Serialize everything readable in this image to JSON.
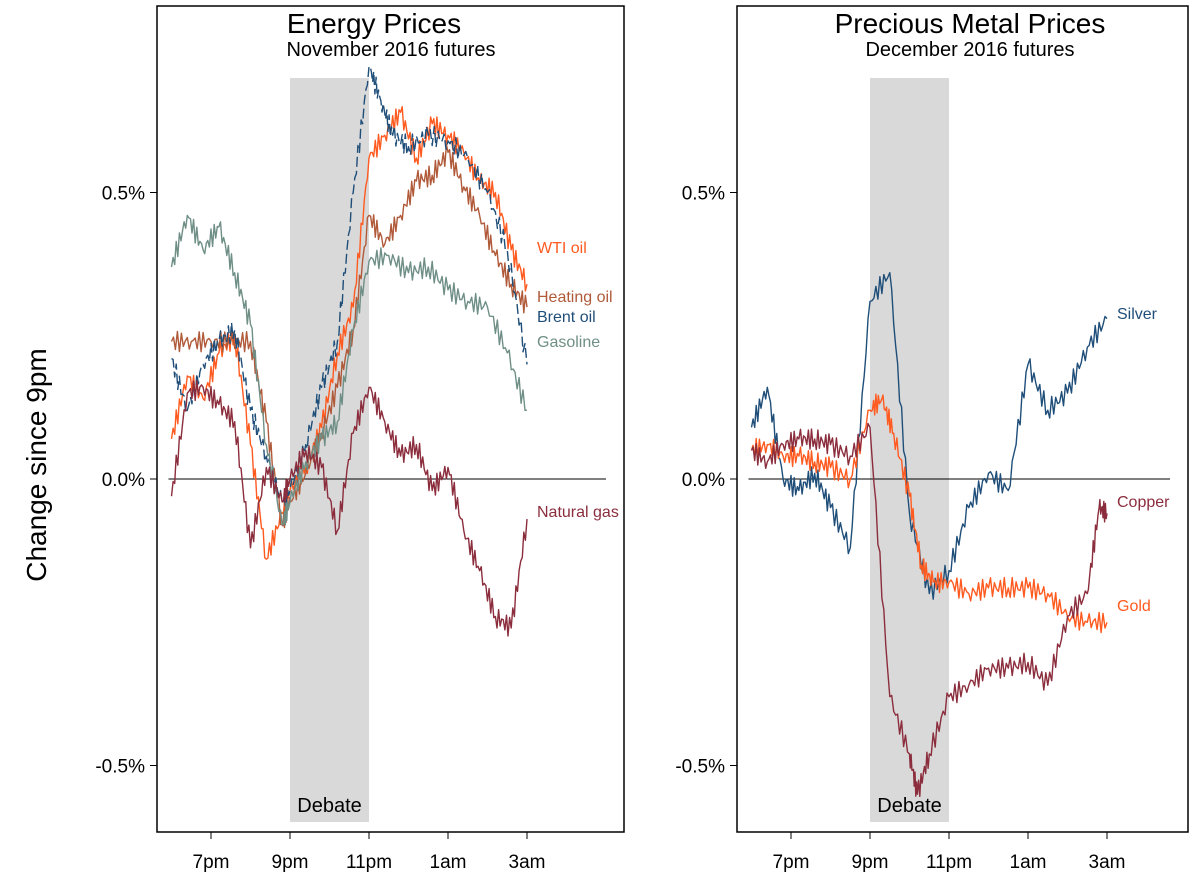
{
  "figure": {
    "ylabel": "Change since 9pm"
  },
  "chart_data": [
    {
      "type": "line",
      "title": "Energy Prices",
      "subtitle": "November 2016 futures",
      "ylabel": "Change since 9pm",
      "xlabel": "",
      "x_unit": "hours since 6pm",
      "xlim": [
        -0.5,
        11.5
      ],
      "ylim": [
        -0.6,
        0.83
      ],
      "x_ticks": [
        {
          "x": 1,
          "label": "7pm"
        },
        {
          "x": 3,
          "label": "9pm"
        },
        {
          "x": 5,
          "label": "11pm"
        },
        {
          "x": 7,
          "label": "1am"
        },
        {
          "x": 9,
          "label": "3am"
        }
      ],
      "y_ticks": [
        {
          "y": 0.5,
          "label": "0.5%"
        },
        {
          "y": 0.0,
          "label": "0.0%"
        },
        {
          "y": -0.5,
          "label": "-0.5%"
        }
      ],
      "zero_line": true,
      "grid": false,
      "shaded_region": {
        "x": [
          3,
          5
        ],
        "label": "Debate"
      },
      "series": [
        {
          "name": "WTI oil",
          "color": "#ff5a1f",
          "x": [
            0,
            0.4,
            0.8,
            1.2,
            1.6,
            2.0,
            2.4,
            2.8,
            3.0,
            3.4,
            3.8,
            4.2,
            4.6,
            5.0,
            5.4,
            5.8,
            6.2,
            6.6,
            7.0,
            7.4,
            7.8,
            8.2,
            8.6,
            9.0
          ],
          "y": [
            0.07,
            0.18,
            0.14,
            0.22,
            0.25,
            0.06,
            -0.14,
            -0.06,
            -0.02,
            0.02,
            0.09,
            0.22,
            0.3,
            0.56,
            0.6,
            0.64,
            0.56,
            0.62,
            0.6,
            0.57,
            0.52,
            0.5,
            0.4,
            0.34
          ]
        },
        {
          "name": "Heating oil",
          "color": "#b05a3a",
          "x": [
            0,
            0.5,
            1.0,
            1.5,
            2.0,
            2.4,
            2.8,
            3.0,
            3.4,
            3.8,
            4.2,
            4.6,
            5.0,
            5.4,
            5.8,
            6.2,
            6.6,
            7.0,
            7.4,
            7.8,
            8.2,
            8.6,
            9.0
          ],
          "y": [
            0.24,
            0.24,
            0.24,
            0.24,
            0.24,
            0.1,
            -0.08,
            -0.04,
            0.01,
            0.08,
            0.16,
            0.26,
            0.46,
            0.41,
            0.46,
            0.52,
            0.53,
            0.57,
            0.51,
            0.46,
            0.39,
            0.34,
            0.3
          ]
        },
        {
          "name": "Brent oil",
          "color": "#1f4e79",
          "x": [
            0,
            0.4,
            0.8,
            1.2,
            1.6,
            2.0,
            2.4,
            2.8,
            3.0,
            3.4,
            3.8,
            4.2,
            4.6,
            5.0,
            5.3,
            5.6,
            6.0,
            6.5,
            7.0,
            7.5,
            8.0,
            8.5,
            9.0
          ],
          "y": [
            0.21,
            0.12,
            0.2,
            0.24,
            0.26,
            0.12,
            0.04,
            -0.04,
            -0.02,
            0.06,
            0.16,
            0.24,
            0.5,
            0.72,
            0.66,
            0.6,
            0.58,
            0.6,
            0.59,
            0.56,
            0.5,
            0.4,
            0.2
          ]
        },
        {
          "name": "Gasoline",
          "color": "#6f8f86",
          "x": [
            0,
            0.4,
            0.8,
            1.2,
            1.6,
            2.0,
            2.4,
            2.8,
            3.0,
            3.4,
            3.8,
            4.2,
            4.6,
            5.0,
            5.5,
            6.0,
            6.5,
            7.0,
            7.5,
            8.0,
            8.5,
            9.0
          ],
          "y": [
            0.37,
            0.46,
            0.4,
            0.44,
            0.36,
            0.27,
            0.06,
            -0.08,
            -0.04,
            0.03,
            0.07,
            0.1,
            0.26,
            0.38,
            0.39,
            0.36,
            0.37,
            0.33,
            0.31,
            0.3,
            0.22,
            0.12
          ]
        },
        {
          "name": "Natural gas",
          "color": "#8b2d3c",
          "x": [
            0,
            0.4,
            0.8,
            1.2,
            1.6,
            2.0,
            2.4,
            2.8,
            3.0,
            3.4,
            3.8,
            4.2,
            4.6,
            5.0,
            5.4,
            5.8,
            6.2,
            6.6,
            7.0,
            7.4,
            7.8,
            8.2,
            8.6,
            9.0
          ],
          "y": [
            -0.03,
            0.15,
            0.16,
            0.13,
            0.1,
            -0.12,
            0.02,
            -0.04,
            0.0,
            0.05,
            0.02,
            -0.09,
            0.08,
            0.16,
            0.1,
            0.04,
            0.06,
            -0.02,
            0.02,
            -0.09,
            -0.16,
            -0.24,
            -0.26,
            -0.07
          ]
        }
      ]
    },
    {
      "type": "line",
      "title": "Precious Metal Prices",
      "subtitle": "December 2016 futures",
      "xlabel": "",
      "x_unit": "hours since 6pm",
      "xlim": [
        -0.5,
        11.5
      ],
      "ylim": [
        -0.6,
        0.83
      ],
      "x_ticks": [
        {
          "x": 1,
          "label": "7pm"
        },
        {
          "x": 3,
          "label": "9pm"
        },
        {
          "x": 5,
          "label": "11pm"
        },
        {
          "x": 7,
          "label": "1am"
        },
        {
          "x": 9,
          "label": "3am"
        }
      ],
      "y_ticks": [
        {
          "y": 0.5,
          "label": "0.5%"
        },
        {
          "y": 0.0,
          "label": "0.0%"
        },
        {
          "y": -0.5,
          "label": "-0.5%"
        }
      ],
      "zero_line": true,
      "grid": false,
      "shaded_region": {
        "x": [
          3,
          5
        ],
        "label": "Debate"
      },
      "series": [
        {
          "name": "Silver",
          "color": "#1f4e79",
          "x": [
            0,
            0.4,
            0.8,
            1.2,
            1.6,
            2.0,
            2.5,
            3.0,
            3.5,
            4.0,
            4.5,
            5.0,
            5.5,
            6.0,
            6.5,
            7.0,
            7.5,
            8.0,
            8.5,
            9.0
          ],
          "y": [
            0.09,
            0.16,
            0.0,
            -0.02,
            0.01,
            -0.05,
            -0.12,
            0.31,
            0.36,
            -0.06,
            -0.2,
            -0.16,
            -0.05,
            0.01,
            -0.02,
            0.2,
            0.12,
            0.15,
            0.23,
            0.28
          ]
        },
        {
          "name": "Gold",
          "color": "#ff5a1f",
          "x": [
            0,
            0.4,
            0.8,
            1.2,
            1.6,
            2.0,
            2.5,
            3.0,
            3.3,
            3.6,
            4.0,
            4.3,
            4.6,
            5.0,
            5.5,
            6.0,
            6.5,
            7.0,
            7.5,
            8.0,
            8.5,
            9.0
          ],
          "y": [
            0.05,
            0.06,
            0.04,
            0.04,
            0.03,
            0.02,
            0.0,
            0.12,
            0.14,
            0.08,
            -0.03,
            -0.15,
            -0.18,
            -0.18,
            -0.2,
            -0.19,
            -0.19,
            -0.19,
            -0.2,
            -0.24,
            -0.25,
            -0.25
          ]
        },
        {
          "name": "Copper",
          "color": "#8b2d3c",
          "x": [
            0,
            0.4,
            0.8,
            1.2,
            1.6,
            2.0,
            2.5,
            3.0,
            3.5,
            4.0,
            4.2,
            4.5,
            5.0,
            5.5,
            6.0,
            6.5,
            7.0,
            7.5,
            8.0,
            8.5,
            8.8,
            9.0
          ],
          "y": [
            0.05,
            0.03,
            0.06,
            0.07,
            0.07,
            0.06,
            0.04,
            0.09,
            -0.38,
            -0.48,
            -0.55,
            -0.48,
            -0.38,
            -0.36,
            -0.33,
            -0.33,
            -0.32,
            -0.36,
            -0.24,
            -0.2,
            -0.05,
            -0.06
          ]
        }
      ]
    }
  ]
}
